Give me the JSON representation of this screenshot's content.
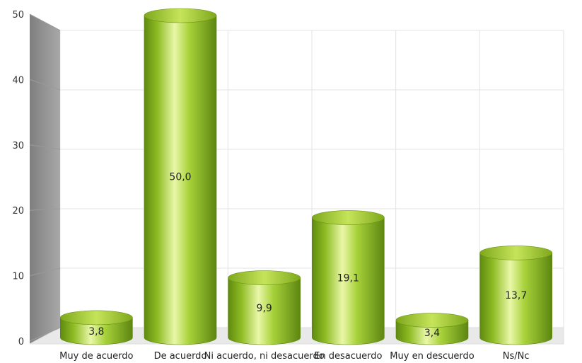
{
  "chart_data": {
    "type": "bar",
    "categories": [
      "Muy de acuerdo",
      "De acuerdo",
      "Ni acuerdo, ni desacuerdo",
      "En desacuerdo",
      "Muy en descuerdo",
      "Ns/Nc"
    ],
    "values": [
      3.8,
      50.0,
      9.9,
      19.1,
      3.4,
      13.7
    ],
    "data_labels": [
      "3,8",
      "50,0",
      "9,9",
      "19,1",
      "3,4",
      "13,7"
    ],
    "y_ticks": [
      "0",
      "10",
      "20",
      "30",
      "40",
      "50"
    ],
    "ylim": [
      0,
      50
    ],
    "grid": true,
    "style": "3d-cylinder",
    "bar_color": "#9ACD32"
  }
}
